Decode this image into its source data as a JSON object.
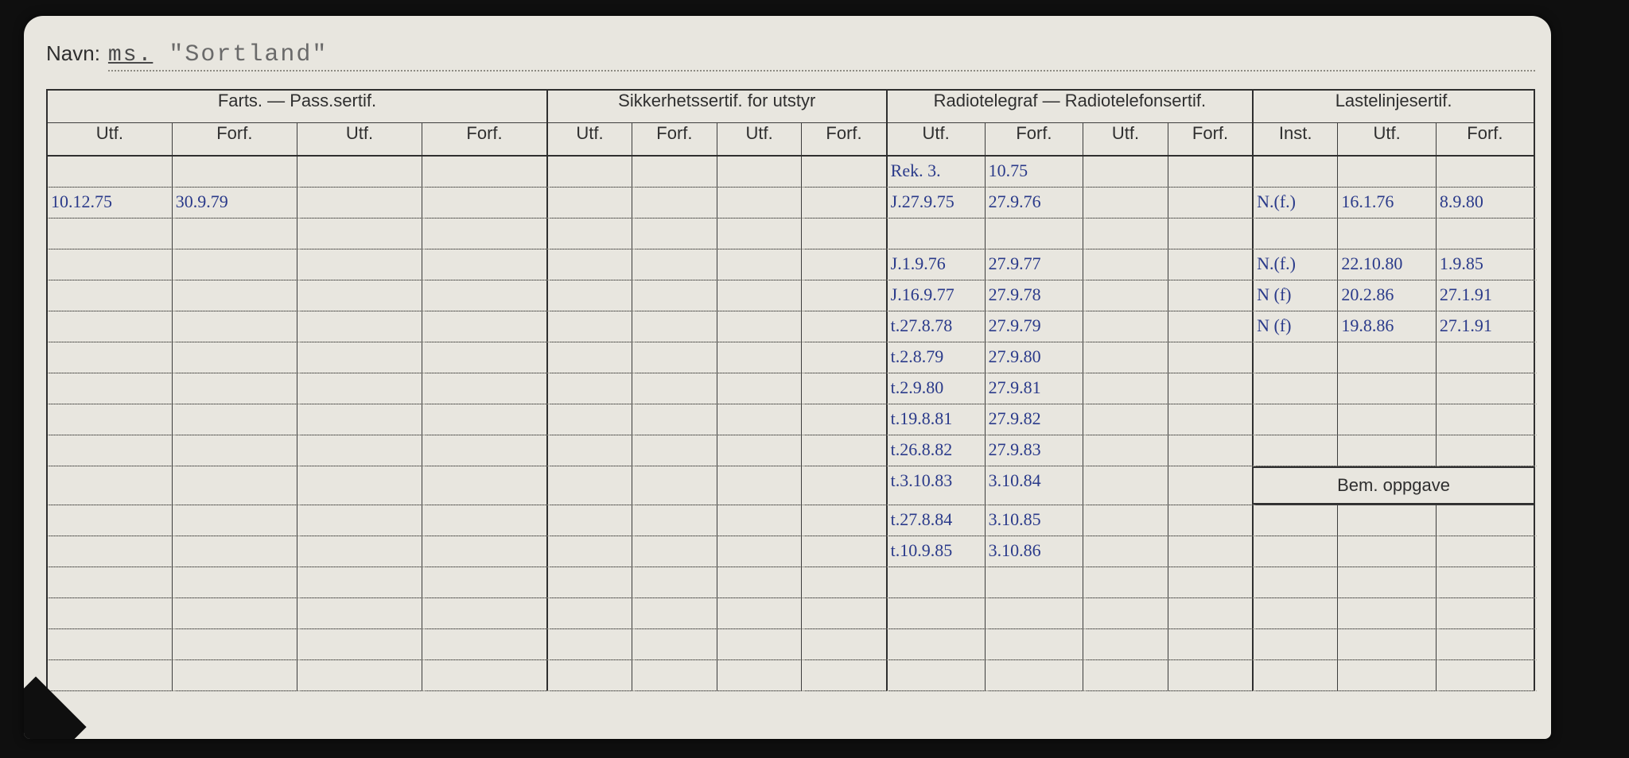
{
  "colors": {
    "paper": "#e8e6df",
    "ink_print": "#2f2f2f",
    "ink_hand": "#2a3a8a",
    "scanner_bg": "#0f0f0f",
    "dotted": "#8d8b83"
  },
  "name_line": {
    "label": "Navn:",
    "prefix": "ms.",
    "value": "\"Sortland\""
  },
  "groups": {
    "farts": "Farts. — Pass.sertif.",
    "sikkerhet": "Sikkerhetssertif. for utstyr",
    "radio": "Radiotelegraf — Radiotelefonsertif.",
    "lastelinje": "Lastelinjesertif."
  },
  "subheaders": {
    "utf": "Utf.",
    "forf": "Forf.",
    "inst": "Inst."
  },
  "bem_label": "Bem. oppgave",
  "binder_holes": 14,
  "row_count": 17,
  "entries": {
    "farts": [
      {
        "utf1": "10.12.75",
        "forf1": "30.9.79",
        "utf2": "",
        "forf2": ""
      }
    ],
    "radio": [
      {
        "utf1": "Rek. 3.",
        "forf1": "10.75",
        "utf2": "",
        "forf2": ""
      },
      {
        "utf1": "J.27.9.75",
        "forf1": "27.9.76",
        "utf2": "",
        "forf2": ""
      },
      {
        "utf1": "J.1.9.76",
        "forf1": "27.9.77",
        "utf2": "",
        "forf2": ""
      },
      {
        "utf1": "J.16.9.77",
        "forf1": "27.9.78",
        "utf2": "",
        "forf2": ""
      },
      {
        "utf1": "t.27.8.78",
        "forf1": "27.9.79",
        "utf2": "",
        "forf2": ""
      },
      {
        "utf1": "t.2.8.79",
        "forf1": "27.9.80",
        "utf2": "",
        "forf2": ""
      },
      {
        "utf1": "t.2.9.80",
        "forf1": "27.9.81",
        "utf2": "",
        "forf2": ""
      },
      {
        "utf1": "t.19.8.81",
        "forf1": "27.9.82",
        "utf2": "",
        "forf2": ""
      },
      {
        "utf1": "t.26.8.82",
        "forf1": "27.9.83",
        "utf2": "",
        "forf2": ""
      },
      {
        "utf1": "t.3.10.83",
        "forf1": "3.10.84",
        "utf2": "",
        "forf2": ""
      },
      {
        "utf1": "t.27.8.84",
        "forf1": "3.10.85",
        "utf2": "",
        "forf2": ""
      },
      {
        "utf1": "t.10.9.85",
        "forf1": "3.10.86",
        "utf2": "",
        "forf2": ""
      }
    ],
    "lastelinje": [
      {
        "inst": "N.(f.)",
        "utf": "16.1.76",
        "forf": "8.9.80"
      },
      {
        "inst": "N.(f.)",
        "utf": "22.10.80",
        "forf": "1.9.85"
      },
      {
        "inst": "N (f)",
        "utf": "20.2.86",
        "forf": "27.1.91"
      },
      {
        "inst": "N (f)",
        "utf": "19.8.86",
        "forf": "27.1.91"
      }
    ]
  }
}
